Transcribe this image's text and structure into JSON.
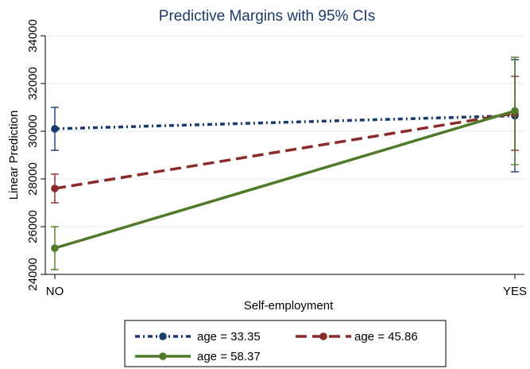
{
  "chart_data": {
    "type": "line",
    "title": "Predictive Margins with 95% CIs",
    "xlabel": "Self-employment",
    "ylabel": "Linear Prediction",
    "categories": [
      "NO",
      "YES"
    ],
    "ylim": [
      24000,
      34000
    ],
    "yticks": [
      24000,
      26000,
      28000,
      30000,
      32000,
      34000
    ],
    "grid": true,
    "legend_position": "bottom",
    "series": [
      {
        "name": "age = 33.35",
        "color": "#1a3a6b",
        "line_style": "dash-dot",
        "values": [
          30100,
          30650
        ],
        "ci_lower": [
          29200,
          28300
        ],
        "ci_upper": [
          31000,
          33000
        ]
      },
      {
        "name": "age = 45.86",
        "color": "#8b2a2a",
        "line_style": "dash",
        "values": [
          27600,
          30750
        ],
        "ci_lower": [
          27000,
          29200
        ],
        "ci_upper": [
          28200,
          32300
        ]
      },
      {
        "name": "age = 58.37",
        "color": "#4e7a2a",
        "line_style": "solid",
        "values": [
          25100,
          30850
        ],
        "ci_lower": [
          24200,
          28600
        ],
        "ci_upper": [
          26000,
          33100
        ]
      }
    ]
  }
}
